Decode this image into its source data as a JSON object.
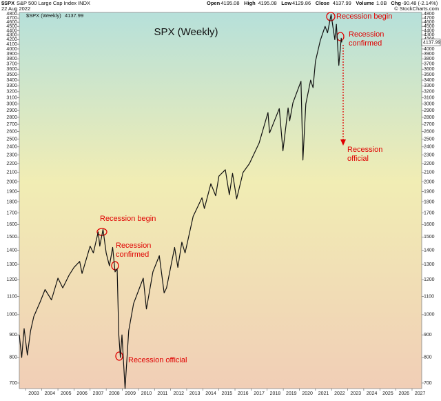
{
  "header": {
    "symbol": "$SPX",
    "name": "S&P 500 Large Cap Index INDX",
    "date": "22 Aug 2022",
    "quote": [
      [
        "Open",
        "4195.08"
      ],
      [
        "High",
        "4195.08"
      ],
      [
        "Low",
        "4129.86"
      ],
      [
        "Close",
        "4137.99"
      ],
      [
        "Volume",
        "1.0B"
      ],
      [
        "Chg",
        "-90.48 (-2.14%)"
      ]
    ],
    "credit": "© StockCharts.com"
  },
  "chart_data": {
    "type": "line",
    "title": "SPX (Weekly)",
    "log_scale": true,
    "grid": false,
    "x": [
      2002.6,
      2002.75,
      2002.9,
      2003.1,
      2003.3,
      2003.5,
      2003.9,
      2004.2,
      2004.6,
      2005.0,
      2005.3,
      2005.7,
      2006.0,
      2006.35,
      2006.5,
      2007.0,
      2007.2,
      2007.5,
      2007.6,
      2007.8,
      2008.0,
      2008.2,
      2008.4,
      2008.55,
      2008.68,
      2008.78,
      2008.88,
      2008.98,
      2009.17,
      2009.4,
      2009.7,
      2010.3,
      2010.5,
      2010.9,
      2011.3,
      2011.6,
      2011.75,
      2012.25,
      2012.45,
      2012.7,
      2012.9,
      2013.4,
      2013.95,
      2014.1,
      2014.5,
      2014.8,
      2015.0,
      2015.4,
      2015.65,
      2015.85,
      2016.1,
      2016.5,
      2016.9,
      2017.5,
      2018.05,
      2018.15,
      2018.75,
      2018.98,
      2019.3,
      2019.4,
      2019.6,
      2020.1,
      2020.22,
      2020.4,
      2020.7,
      2020.85,
      2021.0,
      2021.3,
      2021.6,
      2021.75,
      2021.97,
      2022.2,
      2022.3,
      2022.45,
      2022.6,
      2022.64
    ],
    "series": [
      {
        "name": "$SPX (Weekly)",
        "color": "#111111",
        "last_value": 4137.99,
        "values": [
          900,
          800,
          930,
          810,
          920,
          990,
          1070,
          1140,
          1080,
          1210,
          1150,
          1230,
          1280,
          1320,
          1240,
          1430,
          1380,
          1540,
          1430,
          1560,
          1380,
          1290,
          1420,
          1250,
          1270,
          900,
          800,
          900,
          680,
          920,
          1060,
          1210,
          1030,
          1250,
          1360,
          1120,
          1150,
          1420,
          1280,
          1460,
          1380,
          1670,
          1840,
          1740,
          1980,
          1860,
          2060,
          2130,
          1870,
          2090,
          1830,
          2100,
          2200,
          2450,
          2870,
          2580,
          2930,
          2350,
          2940,
          2750,
          3020,
          3380,
          2240,
          3000,
          3400,
          3270,
          3750,
          4180,
          4500,
          4350,
          4790,
          4200,
          4550,
          3670,
          4230,
          4140
        ]
      }
    ],
    "xlim": [
      2002.6,
      2027.6
    ],
    "xticks": [
      2003,
      2004,
      2005,
      2006,
      2007,
      2008,
      2009,
      2010,
      2011,
      2012,
      2013,
      2014,
      2015,
      2016,
      2017,
      2018,
      2019,
      2020,
      2021,
      2022,
      2023,
      2024,
      2025,
      2026,
      2027
    ],
    "ylim": [
      680,
      4840
    ],
    "yticks": [
      700,
      800,
      900,
      1000,
      1100,
      1200,
      1300,
      1400,
      1500,
      1600,
      1700,
      1800,
      1900,
      2000,
      2100,
      2200,
      2300,
      2400,
      2500,
      2600,
      2700,
      2800,
      2900,
      3000,
      3100,
      3200,
      3300,
      3400,
      3500,
      3600,
      3700,
      3800,
      3900,
      4000,
      4100,
      4200,
      4300,
      4400,
      4500,
      4600,
      4700,
      4800
    ],
    "annotations": [
      "Recession begin",
      "Recession",
      "confirmed",
      "Recession official",
      "Recession begin",
      "Recession",
      "confirmed",
      "Recession",
      "official"
    ]
  }
}
